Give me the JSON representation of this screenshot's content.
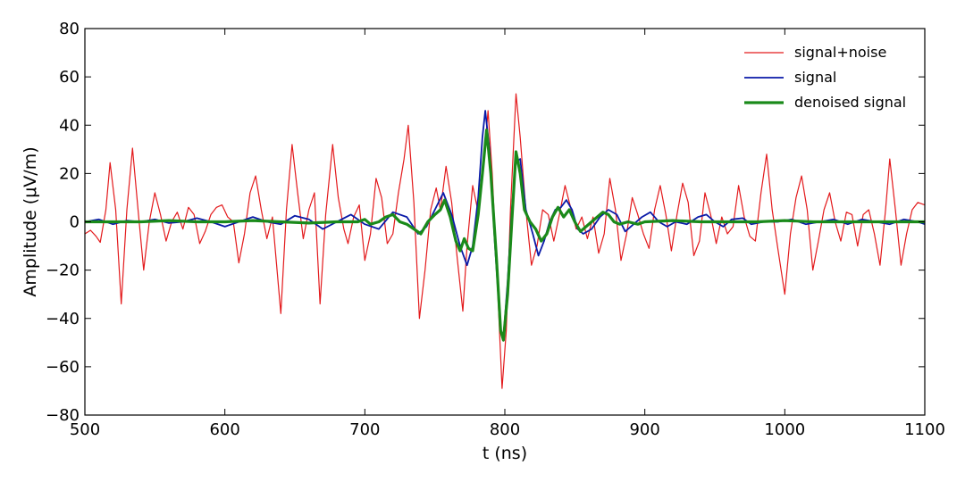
{
  "chart_data": {
    "type": "line",
    "title": "",
    "xlabel": "t (ns)",
    "ylabel": "Amplitude (μV/m)",
    "xlim": [
      500,
      1100
    ],
    "ylim": [
      -80,
      80
    ],
    "x_ticks": [
      500,
      600,
      700,
      800,
      900,
      1000,
      1100
    ],
    "y_ticks": [
      -80,
      -60,
      -40,
      -20,
      0,
      20,
      40,
      60,
      80
    ],
    "x_tick_labels": [
      "500",
      "600",
      "700",
      "800",
      "900",
      "1000",
      "1100"
    ],
    "y_tick_labels": [
      "−80",
      "−60",
      "−40",
      "−20",
      "0",
      "20",
      "40",
      "60",
      "80"
    ],
    "grid": false,
    "legend_position": "top-right",
    "series": [
      {
        "name": "signal+noise",
        "color": "#e31a1c",
        "style": "thin",
        "points": [
          [
            500,
            -5
          ],
          [
            504,
            -3.5
          ],
          [
            508,
            -6
          ],
          [
            511,
            -8.5
          ],
          [
            515,
            5
          ],
          [
            518,
            24.5
          ],
          [
            522,
            5
          ],
          [
            526,
            -34
          ],
          [
            530,
            5
          ],
          [
            534,
            30.5
          ],
          [
            538,
            5
          ],
          [
            542,
            -20
          ],
          [
            546,
            0
          ],
          [
            550,
            12
          ],
          [
            554,
            3
          ],
          [
            558,
            -8
          ],
          [
            562,
            0
          ],
          [
            566,
            4
          ],
          [
            570,
            -3
          ],
          [
            574,
            6
          ],
          [
            578,
            3
          ],
          [
            582,
            -9
          ],
          [
            586,
            -4
          ],
          [
            590,
            3
          ],
          [
            594,
            6
          ],
          [
            598,
            7
          ],
          [
            602,
            2
          ],
          [
            606,
            0
          ],
          [
            610,
            -17
          ],
          [
            614,
            -5
          ],
          [
            618,
            12
          ],
          [
            622,
            19
          ],
          [
            626,
            5
          ],
          [
            630,
            -7
          ],
          [
            634,
            2
          ],
          [
            640,
            -38
          ],
          [
            644,
            5
          ],
          [
            648,
            32
          ],
          [
            652,
            12
          ],
          [
            656,
            -7
          ],
          [
            660,
            5
          ],
          [
            664,
            12
          ],
          [
            668,
            -34
          ],
          [
            672,
            3
          ],
          [
            677,
            32
          ],
          [
            681,
            10
          ],
          [
            685,
            -3
          ],
          [
            688,
            -9
          ],
          [
            692,
            2
          ],
          [
            696,
            7
          ],
          [
            700,
            -16
          ],
          [
            704,
            -5
          ],
          [
            708,
            18
          ],
          [
            712,
            10
          ],
          [
            716,
            -9
          ],
          [
            720,
            -5
          ],
          [
            724,
            12
          ],
          [
            728,
            26
          ],
          [
            731,
            40
          ],
          [
            735,
            8
          ],
          [
            739,
            -40
          ],
          [
            743,
            -20
          ],
          [
            747,
            5
          ],
          [
            751,
            14
          ],
          [
            754,
            5
          ],
          [
            758,
            23
          ],
          [
            762,
            8
          ],
          [
            766,
            -15
          ],
          [
            770,
            -37
          ],
          [
            773,
            -10
          ],
          [
            777,
            15
          ],
          [
            781,
            4
          ],
          [
            785,
            25
          ],
          [
            788,
            46
          ],
          [
            791,
            20
          ],
          [
            795,
            -30
          ],
          [
            798,
            -69
          ],
          [
            801,
            -45
          ],
          [
            804,
            5
          ],
          [
            808,
            53
          ],
          [
            811,
            35
          ],
          [
            815,
            5
          ],
          [
            819,
            -18
          ],
          [
            823,
            -10
          ],
          [
            827,
            5
          ],
          [
            831,
            3
          ],
          [
            835,
            -8
          ],
          [
            839,
            3
          ],
          [
            843,
            15
          ],
          [
            847,
            6
          ],
          [
            851,
            -3
          ],
          [
            855,
            2
          ],
          [
            859,
            -7
          ],
          [
            863,
            2
          ],
          [
            867,
            -13
          ],
          [
            871,
            -5
          ],
          [
            875,
            18
          ],
          [
            879,
            5
          ],
          [
            883,
            -16
          ],
          [
            887,
            -5
          ],
          [
            891,
            10
          ],
          [
            895,
            3
          ],
          [
            899,
            -5
          ],
          [
            903,
            -11
          ],
          [
            907,
            5
          ],
          [
            911,
            15
          ],
          [
            915,
            3
          ],
          [
            919,
            -12
          ],
          [
            923,
            3
          ],
          [
            927,
            16
          ],
          [
            931,
            8
          ],
          [
            935,
            -14
          ],
          [
            939,
            -8
          ],
          [
            943,
            12
          ],
          [
            947,
            3
          ],
          [
            951,
            -9
          ],
          [
            955,
            2
          ],
          [
            959,
            -5
          ],
          [
            963,
            -2
          ],
          [
            967,
            15
          ],
          [
            971,
            2
          ],
          [
            975,
            -6
          ],
          [
            979,
            -8
          ],
          [
            983,
            12
          ],
          [
            987,
            28
          ],
          [
            991,
            5
          ],
          [
            995,
            -11
          ],
          [
            1000,
            -30
          ],
          [
            1004,
            -5
          ],
          [
            1008,
            10
          ],
          [
            1012,
            19
          ],
          [
            1016,
            5
          ],
          [
            1020,
            -20
          ],
          [
            1024,
            -8
          ],
          [
            1028,
            5
          ],
          [
            1032,
            12
          ],
          [
            1036,
            0
          ],
          [
            1040,
            -8
          ],
          [
            1044,
            4
          ],
          [
            1048,
            3
          ],
          [
            1052,
            -10
          ],
          [
            1056,
            3
          ],
          [
            1060,
            5
          ],
          [
            1064,
            -5
          ],
          [
            1068,
            -18
          ],
          [
            1072,
            5
          ],
          [
            1075,
            26
          ],
          [
            1079,
            5
          ],
          [
            1083,
            -18
          ],
          [
            1087,
            -5
          ],
          [
            1091,
            5
          ],
          [
            1095,
            8
          ],
          [
            1100,
            7
          ]
        ]
      },
      {
        "name": "signal",
        "color": "#0a1aa8",
        "style": "medium",
        "points": [
          [
            500,
            0
          ],
          [
            510,
            1
          ],
          [
            520,
            -1
          ],
          [
            530,
            0.5
          ],
          [
            540,
            0
          ],
          [
            550,
            1
          ],
          [
            560,
            -0.5
          ],
          [
            570,
            0
          ],
          [
            580,
            1.5
          ],
          [
            590,
            0
          ],
          [
            600,
            -2
          ],
          [
            610,
            0
          ],
          [
            620,
            2
          ],
          [
            630,
            0
          ],
          [
            640,
            -1
          ],
          [
            650,
            2.5
          ],
          [
            660,
            1
          ],
          [
            670,
            -3
          ],
          [
            680,
            0
          ],
          [
            690,
            3
          ],
          [
            700,
            -1
          ],
          [
            710,
            -3
          ],
          [
            720,
            4
          ],
          [
            730,
            2
          ],
          [
            738,
            -5
          ],
          [
            744,
            -2
          ],
          [
            750,
            5
          ],
          [
            756,
            12
          ],
          [
            762,
            3
          ],
          [
            768,
            -10
          ],
          [
            773,
            -18
          ],
          [
            777,
            -10
          ],
          [
            781,
            10
          ],
          [
            784,
            35
          ],
          [
            786,
            46
          ],
          [
            789,
            30
          ],
          [
            793,
            -10
          ],
          [
            797,
            -45
          ],
          [
            799,
            -48
          ],
          [
            802,
            -25
          ],
          [
            805,
            5
          ],
          [
            808,
            25
          ],
          [
            811,
            26
          ],
          [
            815,
            5
          ],
          [
            820,
            -5
          ],
          [
            824,
            -14
          ],
          [
            828,
            -8
          ],
          [
            832,
            0
          ],
          [
            836,
            5
          ],
          [
            840,
            6
          ],
          [
            844,
            9
          ],
          [
            848,
            5
          ],
          [
            852,
            -3
          ],
          [
            856,
            -5
          ],
          [
            862,
            -3
          ],
          [
            868,
            2
          ],
          [
            874,
            5
          ],
          [
            880,
            3
          ],
          [
            886,
            -4
          ],
          [
            892,
            -1
          ],
          [
            898,
            2
          ],
          [
            904,
            4
          ],
          [
            910,
            0
          ],
          [
            916,
            -2
          ],
          [
            922,
            0
          ],
          [
            930,
            -1
          ],
          [
            938,
            2
          ],
          [
            944,
            3
          ],
          [
            950,
            0
          ],
          [
            956,
            -2
          ],
          [
            962,
            1
          ],
          [
            970,
            1.5
          ],
          [
            976,
            -1
          ],
          [
            985,
            0
          ],
          [
            995,
            0
          ],
          [
            1005,
            1
          ],
          [
            1015,
            -1
          ],
          [
            1025,
            0
          ],
          [
            1035,
            1
          ],
          [
            1045,
            -1
          ],
          [
            1055,
            1
          ],
          [
            1065,
            0
          ],
          [
            1075,
            -1
          ],
          [
            1085,
            1
          ],
          [
            1095,
            0
          ],
          [
            1100,
            -1
          ]
        ]
      },
      {
        "name": "denoised signal",
        "color": "#1a8a1a",
        "style": "thick",
        "points": [
          [
            500,
            0
          ],
          [
            520,
            0
          ],
          [
            540,
            0
          ],
          [
            560,
            0.5
          ],
          [
            580,
            0
          ],
          [
            600,
            0
          ],
          [
            620,
            0.5
          ],
          [
            640,
            0
          ],
          [
            660,
            -0.5
          ],
          [
            680,
            0
          ],
          [
            695,
            0
          ],
          [
            700,
            1
          ],
          [
            704,
            -1
          ],
          [
            710,
            0
          ],
          [
            715,
            2
          ],
          [
            720,
            3
          ],
          [
            725,
            0
          ],
          [
            730,
            -1
          ],
          [
            735,
            -3
          ],
          [
            740,
            -5
          ],
          [
            745,
            0
          ],
          [
            750,
            3
          ],
          [
            754,
            5
          ],
          [
            757,
            9
          ],
          [
            761,
            2
          ],
          [
            765,
            -8
          ],
          [
            768,
            -12
          ],
          [
            771,
            -7
          ],
          [
            774,
            -11
          ],
          [
            777,
            -12
          ],
          [
            781,
            3
          ],
          [
            784,
            20
          ],
          [
            787,
            38
          ],
          [
            790,
            20
          ],
          [
            794,
            -15
          ],
          [
            797,
            -45
          ],
          [
            799,
            -49
          ],
          [
            802,
            -30
          ],
          [
            805,
            0
          ],
          [
            808,
            29
          ],
          [
            811,
            20
          ],
          [
            814,
            5
          ],
          [
            818,
            0
          ],
          [
            822,
            -3
          ],
          [
            826,
            -8
          ],
          [
            830,
            -5
          ],
          [
            834,
            2
          ],
          [
            838,
            6
          ],
          [
            842,
            2
          ],
          [
            846,
            5
          ],
          [
            850,
            0
          ],
          [
            854,
            -4
          ],
          [
            858,
            -2
          ],
          [
            862,
            0
          ],
          [
            866,
            2
          ],
          [
            870,
            4
          ],
          [
            874,
            3
          ],
          [
            878,
            0
          ],
          [
            882,
            -1
          ],
          [
            888,
            0
          ],
          [
            895,
            -1
          ],
          [
            900,
            0
          ],
          [
            920,
            0.5
          ],
          [
            940,
            0
          ],
          [
            960,
            0
          ],
          [
            980,
            0
          ],
          [
            1000,
            0.5
          ],
          [
            1020,
            0
          ],
          [
            1040,
            0
          ],
          [
            1060,
            0
          ],
          [
            1080,
            0
          ],
          [
            1100,
            0
          ]
        ]
      }
    ]
  }
}
